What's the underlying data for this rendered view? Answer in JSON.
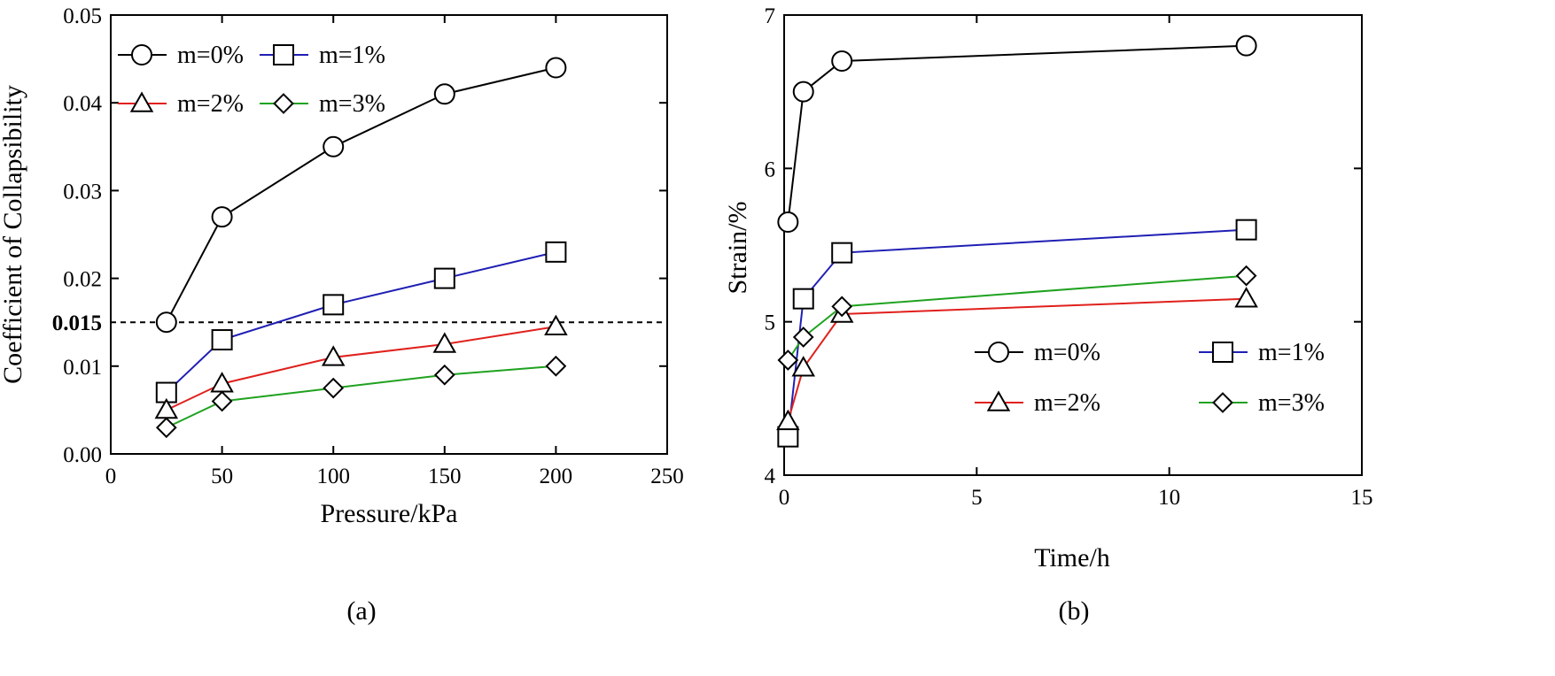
{
  "chart_data": [
    {
      "type": "line",
      "panel_label": "(a)",
      "xlabel": "Pressure/kPa",
      "ylabel": "Coefficient of Collapsibility",
      "xlim": [
        0,
        250
      ],
      "ylim": [
        0,
        0.05
      ],
      "xticks": [
        "0",
        "50",
        "100",
        "150",
        "200",
        "250"
      ],
      "xtick_values": [
        0,
        50,
        100,
        150,
        200,
        250
      ],
      "yticks": [
        "0.00",
        "0.01",
        "0.02",
        "0.03",
        "0.04",
        "0.05"
      ],
      "ytick_values": [
        0,
        0.01,
        0.02,
        0.03,
        0.04,
        0.05
      ],
      "reference_line": {
        "y": 0.015,
        "label": "0.015",
        "style": "dashed"
      },
      "legend_placement": "top-left",
      "series": [
        {
          "name": "m=0%",
          "color": "#000000",
          "marker": "circle",
          "x": [
            25,
            50,
            100,
            150,
            200
          ],
          "y": [
            0.015,
            0.027,
            0.035,
            0.041,
            0.044
          ]
        },
        {
          "name": "m=1%",
          "color": "#1f1fb4",
          "marker": "square",
          "x": [
            25,
            50,
            100,
            150,
            200
          ],
          "y": [
            0.007,
            0.013,
            0.017,
            0.02,
            0.023
          ]
        },
        {
          "name": "m=2%",
          "color": "#e0201c",
          "marker": "triangle",
          "x": [
            25,
            50,
            100,
            150,
            200
          ],
          "y": [
            0.005,
            0.008,
            0.011,
            0.0125,
            0.0145
          ]
        },
        {
          "name": "m=3%",
          "color": "#1fa21f",
          "marker": "diamond",
          "x": [
            25,
            50,
            100,
            150,
            200
          ],
          "y": [
            0.003,
            0.006,
            0.0075,
            0.009,
            0.01
          ]
        }
      ]
    },
    {
      "type": "line",
      "panel_label": "(b)",
      "xlabel": "Time/h",
      "ylabel": "Strain/%",
      "xlim": [
        0,
        15
      ],
      "ylim": [
        4,
        7
      ],
      "xticks": [
        "0",
        "5",
        "10",
        "15"
      ],
      "xtick_values": [
        0,
        5,
        10,
        15
      ],
      "yticks": [
        "4",
        "5",
        "6",
        "7"
      ],
      "ytick_values": [
        4,
        5,
        6,
        7
      ],
      "legend_placement": "bottom-right",
      "series": [
        {
          "name": "m=0%",
          "color": "#000000",
          "marker": "circle",
          "x": [
            0.1,
            0.5,
            1.5,
            12
          ],
          "y": [
            5.65,
            6.5,
            6.7,
            6.8
          ]
        },
        {
          "name": "m=1%",
          "color": "#1f1fb4",
          "marker": "square",
          "x": [
            0.1,
            0.5,
            1.5,
            12
          ],
          "y": [
            4.25,
            5.15,
            5.45,
            5.6
          ]
        },
        {
          "name": "m=2%",
          "color": "#e0201c",
          "marker": "triangle",
          "x": [
            0.1,
            0.5,
            1.5,
            12
          ],
          "y": [
            4.35,
            4.7,
            5.05,
            5.15
          ]
        },
        {
          "name": "m=3%",
          "color": "#1fa21f",
          "marker": "diamond",
          "x": [
            0.1,
            0.5,
            1.5,
            12
          ],
          "y": [
            4.75,
            4.9,
            5.1,
            5.3
          ]
        }
      ]
    }
  ]
}
